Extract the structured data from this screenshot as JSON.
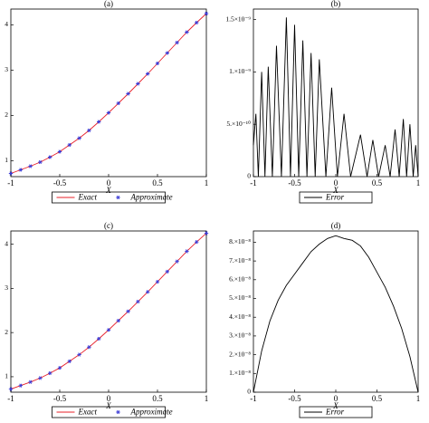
{
  "chart_data": [
    {
      "type": "line",
      "title": "(a)",
      "xlabel": "X",
      "x": [
        -1,
        -0.9,
        -0.8,
        -0.7,
        -0.6,
        -0.5,
        -0.4,
        -0.3,
        -0.2,
        -0.1,
        0,
        0.1,
        0.2,
        0.3,
        0.4,
        0.5,
        0.6,
        0.7,
        0.8,
        0.9,
        1
      ],
      "series": [
        {
          "name": "Exact",
          "color": "#e8202a",
          "style": "line",
          "values": [
            0.72,
            0.8,
            0.88,
            0.97,
            1.08,
            1.2,
            1.35,
            1.5,
            1.67,
            1.86,
            2.06,
            2.27,
            2.48,
            2.7,
            2.92,
            3.15,
            3.38,
            3.61,
            3.84,
            4.05,
            4.25
          ]
        },
        {
          "name": "Approximate",
          "color": "#3b3bd6",
          "style": "marker",
          "values": [
            0.72,
            0.8,
            0.88,
            0.97,
            1.08,
            1.2,
            1.35,
            1.5,
            1.67,
            1.86,
            2.06,
            2.27,
            2.48,
            2.7,
            2.92,
            3.15,
            3.38,
            3.61,
            3.84,
            4.05,
            4.25
          ]
        }
      ],
      "xlim": [
        -1,
        1
      ],
      "ylim": [
        0.65,
        4.35
      ],
      "xticks": [
        -1,
        -0.5,
        0,
        0.5,
        1
      ],
      "yticks": [
        1,
        2,
        3,
        4
      ]
    },
    {
      "type": "line",
      "title": "(b)",
      "xlabel": "X",
      "x": [
        -1,
        -0.97,
        -0.94,
        -0.9,
        -0.86,
        -0.82,
        -0.77,
        -0.72,
        -0.66,
        -0.6,
        -0.55,
        -0.5,
        -0.45,
        -0.4,
        -0.35,
        -0.3,
        -0.25,
        -0.2,
        -0.12,
        -0.05,
        0.02,
        0.1,
        0.18,
        0.3,
        0.38,
        0.45,
        0.52,
        0.6,
        0.66,
        0.72,
        0.77,
        0.82,
        0.86,
        0.9,
        0.94,
        0.97,
        1
      ],
      "series": [
        {
          "name": "Error",
          "color": "#000000",
          "style": "line",
          "values": [
            3e-10,
            6e-10,
            0,
            1e-09,
            0,
            1.05e-09,
            0,
            1.25e-09,
            0,
            1.52e-09,
            0,
            1.45e-09,
            0,
            1.3e-09,
            0,
            1.18e-09,
            0,
            1.12e-09,
            0,
            8.5e-10,
            0,
            6e-10,
            0,
            4e-10,
            0,
            3.5e-10,
            0,
            3e-10,
            0,
            4.5e-10,
            0,
            5.5e-10,
            0,
            5e-10,
            0,
            3e-10,
            0
          ]
        }
      ],
      "xlim": [
        -1,
        1
      ],
      "ylim": [
        0,
        1.6e-09
      ],
      "xticks": [
        -1,
        -0.5,
        0,
        0.5,
        1
      ],
      "yticks": [
        0,
        {
          "value": 5e-10,
          "label": "5.×10⁻¹⁰"
        },
        {
          "value": 1e-09,
          "label": "1.×10⁻⁹"
        },
        {
          "value": 1.5e-09,
          "label": "1.5×10⁻⁹"
        }
      ]
    },
    {
      "type": "line",
      "title": "(c)",
      "xlabel": "X",
      "x": [
        -1,
        -0.9,
        -0.8,
        -0.7,
        -0.6,
        -0.5,
        -0.4,
        -0.3,
        -0.2,
        -0.1,
        0,
        0.1,
        0.2,
        0.3,
        0.4,
        0.5,
        0.6,
        0.7,
        0.8,
        0.9,
        1
      ],
      "series": [
        {
          "name": "Exact",
          "color": "#e8202a",
          "style": "line",
          "values": [
            0.72,
            0.8,
            0.88,
            0.97,
            1.08,
            1.2,
            1.35,
            1.5,
            1.67,
            1.86,
            2.06,
            2.27,
            2.48,
            2.7,
            2.92,
            3.15,
            3.38,
            3.61,
            3.84,
            4.05,
            4.25
          ]
        },
        {
          "name": "Approximate",
          "color": "#3b3bd6",
          "style": "marker",
          "values": [
            0.72,
            0.8,
            0.88,
            0.97,
            1.08,
            1.2,
            1.35,
            1.5,
            1.67,
            1.86,
            2.06,
            2.27,
            2.48,
            2.7,
            2.92,
            3.15,
            3.38,
            3.61,
            3.84,
            4.05,
            4.25
          ]
        }
      ],
      "xlim": [
        -1,
        1
      ],
      "ylim": [
        0.65,
        4.3
      ],
      "xticks": [
        -1,
        -0.5,
        0,
        0.5,
        1
      ],
      "yticks": [
        1,
        2,
        3,
        4
      ]
    },
    {
      "type": "line",
      "title": "(d)",
      "xlabel": "X",
      "x": [
        -1,
        -0.9,
        -0.8,
        -0.7,
        -0.6,
        -0.5,
        -0.4,
        -0.3,
        -0.2,
        -0.1,
        0,
        0.1,
        0.2,
        0.3,
        0.4,
        0.5,
        0.6,
        0.7,
        0.8,
        0.9,
        1
      ],
      "series": [
        {
          "name": "Error",
          "color": "#000000",
          "style": "line",
          "values": [
            0,
            2.2e-08,
            3.8e-08,
            4.9e-08,
            5.7e-08,
            6.3e-08,
            6.9e-08,
            7.5e-08,
            7.9e-08,
            8.2e-08,
            8.35e-08,
            8.2e-08,
            8.1e-08,
            7.8e-08,
            7.2e-08,
            6.4e-08,
            5.6e-08,
            4.6e-08,
            3.4e-08,
            1.9e-08,
            0
          ]
        }
      ],
      "xlim": [
        -1,
        1
      ],
      "ylim": [
        0,
        8.6e-08
      ],
      "xticks": [
        -1,
        -0.5,
        0,
        0.5,
        1
      ],
      "yticks": [
        0,
        {
          "value": 1e-08,
          "label": "1.×10⁻⁸"
        },
        {
          "value": 2e-08,
          "label": "2.×10⁻⁸"
        },
        {
          "value": 3e-08,
          "label": "3.×10⁻⁸"
        },
        {
          "value": 4e-08,
          "label": "4.×10⁻⁸"
        },
        {
          "value": 5e-08,
          "label": "5.×10⁻⁸"
        },
        {
          "value": 6e-08,
          "label": "6.×10⁻⁸"
        },
        {
          "value": 7e-08,
          "label": "7.×10⁻⁸"
        },
        {
          "value": 8e-08,
          "label": "8.×10⁻⁸"
        }
      ]
    }
  ]
}
